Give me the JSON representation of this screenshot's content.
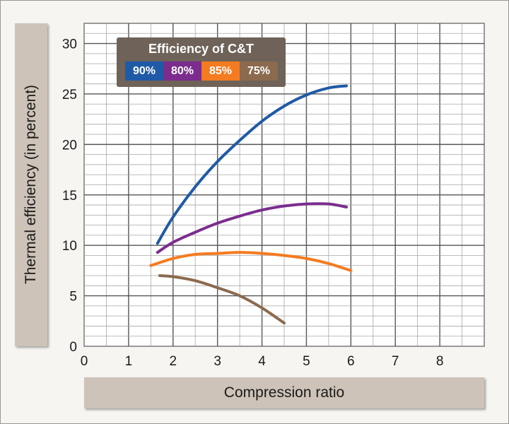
{
  "chart_data": {
    "type": "line",
    "xlabel": "Compression ratio",
    "ylabel": "Thermal efficiency (in percent)",
    "xlim": [
      0,
      9
    ],
    "ylim": [
      0,
      32
    ],
    "x_ticks": [
      "0",
      "1",
      "2",
      "3",
      "4",
      "5",
      "6",
      "7",
      "8"
    ],
    "y_ticks": [
      "0",
      "5",
      "10",
      "15",
      "20",
      "25",
      "30"
    ],
    "grid": true,
    "legend": {
      "title": "Efficiency of C&T",
      "placement": "top-left"
    },
    "series": [
      {
        "name": "90%",
        "color": "#1f5aa6",
        "x": [
          1.65,
          2.0,
          2.5,
          3.0,
          3.5,
          4.0,
          4.5,
          5.0,
          5.5,
          5.9
        ],
        "y": [
          10.2,
          12.8,
          15.8,
          18.3,
          20.4,
          22.3,
          23.8,
          24.9,
          25.6,
          25.8
        ]
      },
      {
        "name": "80%",
        "color": "#7b2d8e",
        "x": [
          1.65,
          2.0,
          2.5,
          3.0,
          3.5,
          4.0,
          4.5,
          5.0,
          5.5,
          5.9
        ],
        "y": [
          9.3,
          10.3,
          11.3,
          12.2,
          12.9,
          13.5,
          13.9,
          14.1,
          14.1,
          13.8
        ]
      },
      {
        "name": "85%",
        "color": "#f47b20",
        "x": [
          1.5,
          2.0,
          2.5,
          3.0,
          3.5,
          4.0,
          4.5,
          5.0,
          5.5,
          6.0
        ],
        "y": [
          8.0,
          8.7,
          9.1,
          9.2,
          9.3,
          9.2,
          9.0,
          8.7,
          8.2,
          7.5
        ]
      },
      {
        "name": "75%",
        "color": "#8b6a4e",
        "x": [
          1.7,
          2.0,
          2.5,
          3.0,
          3.5,
          4.0,
          4.5
        ],
        "y": [
          7.0,
          6.9,
          6.5,
          5.8,
          5.0,
          3.8,
          2.3
        ]
      }
    ]
  }
}
